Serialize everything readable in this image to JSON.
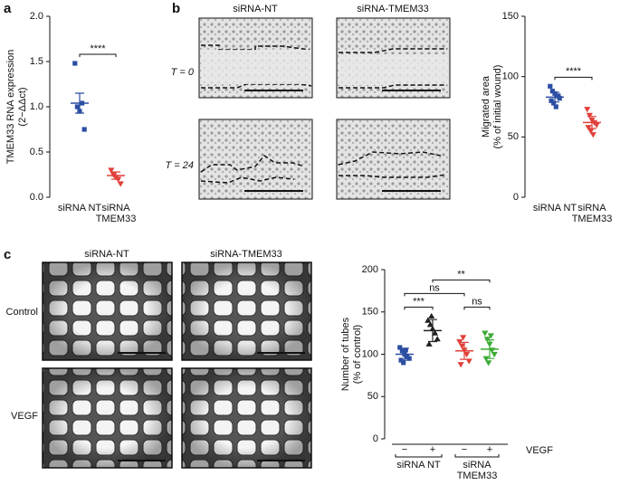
{
  "figure": {
    "panel_labels": [
      "a",
      "b",
      "c"
    ],
    "panel_b": {
      "columns": [
        "siRNA-NT",
        "siRNA-TMEM33"
      ],
      "rows": [
        "T = 0",
        "T = 24"
      ]
    },
    "panel_c": {
      "columns": [
        "siRNA-NT",
        "siRNA-TMEM33"
      ],
      "rows": [
        "Control",
        "VEGF"
      ]
    }
  },
  "chart_data": [
    {
      "type": "dot",
      "ylabel": [
        "TMEM33 RNA expression",
        "(2−ΔΔct)"
      ],
      "ylim": [
        0,
        2.0
      ],
      "yticks": [
        {
          "value": 0,
          "label": "0.0"
        },
        {
          "value": 0.5,
          "label": "0.5"
        },
        {
          "value": 1,
          "label": "1.0"
        },
        {
          "value": 1.5,
          "label": "1.5"
        },
        {
          "value": 2,
          "label": "2.0"
        }
      ],
      "categories": [
        "siRNA NT",
        "siRNA TMEM33"
      ],
      "colors": [
        "#2b4ea2",
        "#e0413a"
      ],
      "markers": [
        "square",
        "triangle-down"
      ],
      "points": [
        [
          1.48,
          1.0,
          0.95,
          1.04,
          0.75
        ],
        [
          0.3,
          0.25,
          0.22,
          0.2,
          0.15
        ]
      ],
      "means": [
        1.04,
        0.24
      ],
      "errors": [
        0.11,
        0.04
      ],
      "significance": [
        {
          "from": 0,
          "to": 1,
          "label": "****"
        }
      ]
    },
    {
      "type": "dot",
      "ylabel": [
        "Migrated area",
        "(% of initial wound)"
      ],
      "ylim": [
        0,
        150
      ],
      "yticks": [
        0,
        50,
        100,
        150
      ],
      "categories": [
        "siRNA NT",
        "siRNA TMEM33"
      ],
      "colors": [
        "#2b4ea2",
        "#e0413a"
      ],
      "markers": [
        "square",
        "triangle-down"
      ],
      "points": [
        [
          92,
          88,
          86,
          84,
          82,
          80,
          78,
          75,
          84
        ],
        [
          73,
          68,
          64,
          62,
          60,
          58,
          55,
          52
        ]
      ],
      "means": [
        83,
        62
      ],
      "errors": [
        4,
        5
      ],
      "significance": [
        {
          "from": 0,
          "to": 1,
          "label": "****"
        }
      ]
    },
    {
      "type": "dot",
      "ylabel": [
        "Number of tubes",
        "(% of control)"
      ],
      "ylim": [
        0,
        200
      ],
      "yticks": [
        0,
        50,
        100,
        150,
        200
      ],
      "categories": [
        "−",
        "+",
        "−",
        "+"
      ],
      "colors": [
        "#2b4ea2",
        "#222222",
        "#e0413a",
        "#3aaa35"
      ],
      "markers": [
        "square",
        "triangle-up",
        "triangle-down",
        "triangle-down"
      ],
      "points": [
        [
          108,
          104,
          100,
          97,
          95,
          93,
          90,
          105
        ],
        [
          140,
          135,
          130,
          125,
          118,
          112,
          145
        ],
        [
          115,
          110,
          105,
          100,
          92,
          88,
          120
        ],
        [
          125,
          118,
          112,
          105,
          100,
          95,
          90,
          122
        ]
      ],
      "means": [
        100,
        128,
        104,
        106
      ],
      "errors": [
        7,
        13,
        10,
        11
      ],
      "significance": [
        {
          "from": 0,
          "to": 1,
          "label": "***"
        },
        {
          "from": 2,
          "to": 3,
          "label": "ns"
        },
        {
          "from": 0,
          "to": 2,
          "label": "ns"
        },
        {
          "from": 1,
          "to": 3,
          "label": "**"
        }
      ],
      "groups": [
        {
          "label": "siRNA NT",
          "from": 0,
          "to": 1
        },
        {
          "label": "siRNA TMEM33",
          "from": 2,
          "to": 3
        }
      ],
      "factor_label": "VEGF"
    }
  ]
}
